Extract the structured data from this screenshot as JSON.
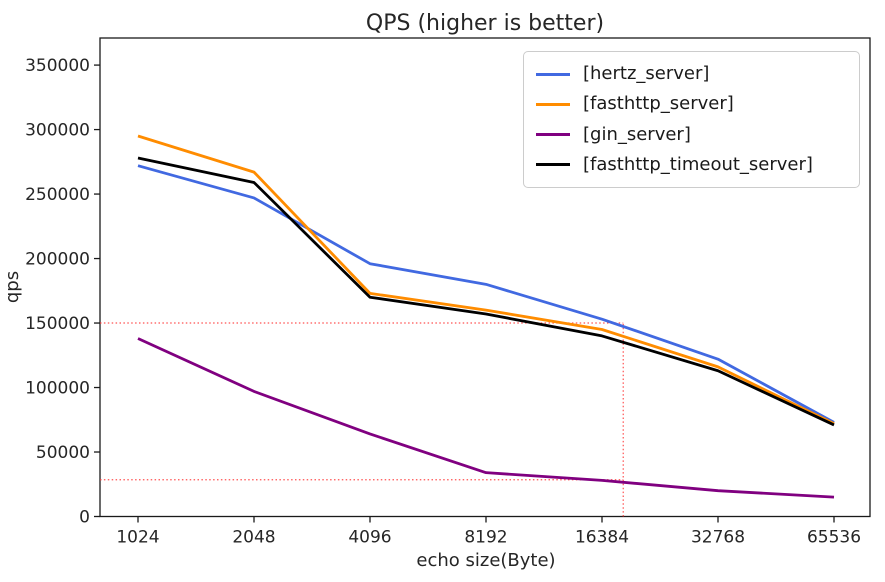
{
  "figure": {
    "background": "#ffffff",
    "text_color": "#262626",
    "spine_color": "#1a1a1a"
  },
  "chart_data": {
    "type": "line",
    "title": "QPS (higher is better)",
    "xlabel": "echo size(Byte)",
    "ylabel": "qps",
    "x_scale": "log2",
    "grid": false,
    "legend_position": "upper right",
    "categories": [
      1024,
      2048,
      4096,
      8192,
      16384,
      32768,
      65536
    ],
    "yticks": [
      0,
      50000,
      100000,
      150000,
      200000,
      250000,
      300000,
      350000
    ],
    "ylim": [
      0,
      371000
    ],
    "series": [
      {
        "name": "[hertz_server]",
        "color": "#4169e1",
        "values": [
          272000,
          247000,
          196000,
          180000,
          153000,
          122000,
          73000
        ]
      },
      {
        "name": "[fasthttp_server]",
        "color": "#ff8c00",
        "values": [
          295000,
          267000,
          173000,
          160000,
          145000,
          116000,
          72000
        ]
      },
      {
        "name": "[gin_server]",
        "color": "#800080",
        "values": [
          138000,
          97000,
          64000,
          34000,
          28000,
          20000,
          15000
        ]
      },
      {
        "name": "[fasthttp_timeout_server]",
        "color": "#000000",
        "values": [
          278000,
          259000,
          170000,
          157000,
          140000,
          113000,
          71000
        ]
      }
    ],
    "annotations": {
      "color": "#ff3333",
      "style": "dotted",
      "hlines": [
        {
          "y": 150000,
          "x_to": 18600
        },
        {
          "y": 28500,
          "x_to": 18600
        }
      ],
      "vlines": [
        {
          "x": 18600,
          "y_from": 0,
          "y_to": 150000
        }
      ]
    }
  }
}
